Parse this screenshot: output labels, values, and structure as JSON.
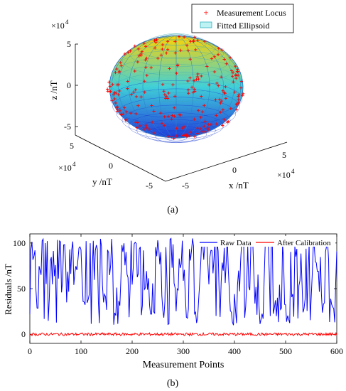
{
  "chart_data": [
    {
      "type": "scatter",
      "panel_label": "(a)",
      "legend": {
        "placement": "top-right",
        "entries": [
          "Measurement Locus",
          "Fitted Ellipsoid"
        ]
      },
      "axes": {
        "x": {
          "label": "x /nT",
          "ticks": [
            "-5",
            "0",
            "5"
          ],
          "multiplier": "×10^4",
          "lim": [
            -6,
            6
          ]
        },
        "y": {
          "label": "y /nT",
          "ticks": [
            "-5",
            "0",
            "5"
          ],
          "multiplier": "×10^4",
          "lim": [
            -6,
            6
          ]
        },
        "z": {
          "label": "z /nT",
          "ticks": [
            "-5",
            "0",
            "5"
          ],
          "multiplier": "×10^4",
          "lim": [
            -6,
            6
          ]
        }
      },
      "ellipsoid": {
        "center": [
          0,
          0,
          0
        ],
        "radii": [
          5.6,
          5.6,
          4.2
        ],
        "units": "×10^4 nT"
      },
      "locus_points": 600,
      "colors": {
        "locus": "#ff0000",
        "ellipsoid_low": "#1f3cdc",
        "ellipsoid_mid": "#40d0d8",
        "ellipsoid_high": "#ffd400"
      }
    },
    {
      "type": "line",
      "panel_label": "(b)",
      "xlabel": "Measurement Points",
      "ylabel": "Residuals /nT",
      "xlim": [
        0,
        600
      ],
      "ylim": [
        -10,
        110
      ],
      "xticks": [
        0,
        100,
        200,
        300,
        400,
        500,
        600
      ],
      "yticks": [
        0,
        50,
        100
      ],
      "legend": {
        "placement": "top-right"
      },
      "series": [
        {
          "name": "Raw Data",
          "color": "#0000ff",
          "range": [
            10,
            105
          ],
          "points": 600
        },
        {
          "name": "After Calibration",
          "color": "#ff0000",
          "range": [
            -1.5,
            1.5
          ],
          "points": 600
        }
      ]
    }
  ]
}
